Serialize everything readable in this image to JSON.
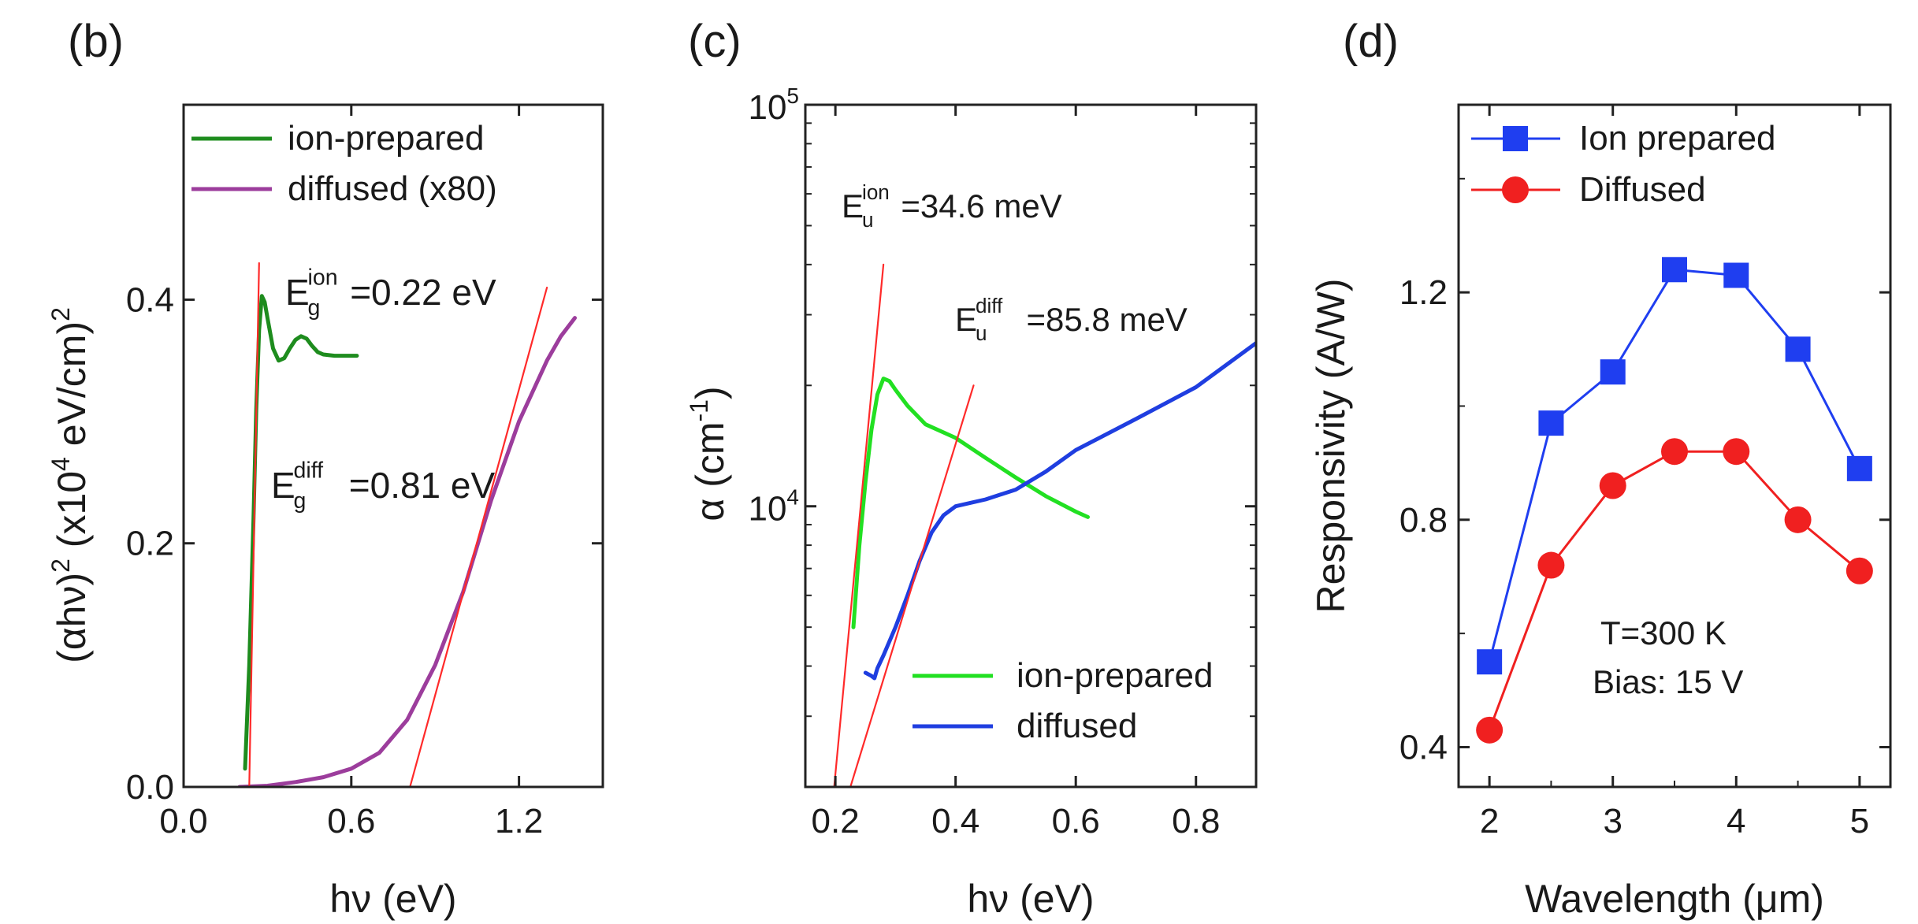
{
  "chart_data": [
    {
      "panel": "(b)",
      "type": "line",
      "xlabel": "hν (eV)",
      "ylabel_parts": [
        "(αhν)",
        "2",
        " (x10",
        "4",
        " eV/cm)",
        "2"
      ],
      "xlim": [
        0.0,
        1.5
      ],
      "ylim": [
        0.0,
        0.56
      ],
      "xticks": [
        0.0,
        0.6,
        1.2
      ],
      "xtick_labels": [
        "0.0",
        "0.6",
        "1.2"
      ],
      "yticks": [
        0.0,
        0.2,
        0.4
      ],
      "ytick_labels": [
        "0.0",
        "0.2",
        "0.4"
      ],
      "legend": [
        "ion-prepared",
        "diffused (x80)"
      ],
      "annotations": [
        {
          "parts": [
            "E",
            "g",
            "ion",
            "=0.22 eV"
          ],
          "color": "#1b8a1b"
        },
        {
          "parts": [
            "E",
            "g",
            "diff",
            "=0.81 eV"
          ],
          "color": "#9b2d9b"
        }
      ],
      "series": [
        {
          "name": "ion-prepared",
          "color": "#1e8c1e",
          "x": [
            0.22,
            0.235,
            0.25,
            0.26,
            0.27,
            0.28,
            0.29,
            0.3,
            0.32,
            0.34,
            0.36,
            0.38,
            0.4,
            0.42,
            0.44,
            0.46,
            0.48,
            0.5,
            0.54,
            0.58,
            0.62
          ],
          "y": [
            0.015,
            0.1,
            0.22,
            0.31,
            0.375,
            0.403,
            0.398,
            0.385,
            0.36,
            0.35,
            0.352,
            0.36,
            0.367,
            0.37,
            0.368,
            0.362,
            0.357,
            0.355,
            0.354,
            0.354,
            0.354
          ]
        },
        {
          "name": "diffused (x80)",
          "color": "#9c3d9c",
          "x": [
            0.2,
            0.3,
            0.4,
            0.5,
            0.6,
            0.7,
            0.8,
            0.9,
            1.0,
            1.1,
            1.2,
            1.3,
            1.35,
            1.4
          ],
          "y": [
            0.0,
            0.001,
            0.004,
            0.008,
            0.015,
            0.028,
            0.055,
            0.1,
            0.16,
            0.235,
            0.3,
            0.35,
            0.37,
            0.385
          ]
        }
      ],
      "fit_lines": [
        {
          "x": [
            0.235,
            0.27
          ],
          "y": [
            0.0,
            0.43
          ]
        },
        {
          "x": [
            0.81,
            1.3
          ],
          "y": [
            0.0,
            0.41
          ]
        }
      ]
    },
    {
      "panel": "(c)",
      "type": "line",
      "xscale": "linear",
      "yscale": "log",
      "xlabel": "hν (eV)",
      "ylabel_parts": [
        "α (cm",
        "-1",
        ")"
      ],
      "xlim": [
        0.15,
        0.9
      ],
      "ylim": [
        2000,
        100000
      ],
      "xticks": [
        0.2,
        0.4,
        0.6,
        0.8
      ],
      "xtick_labels": [
        "0.2",
        "0.4",
        "0.6",
        "0.8"
      ],
      "yticks": [
        10000,
        100000
      ],
      "ytick_labels": [
        [
          "10",
          "4"
        ],
        [
          "10",
          "5"
        ]
      ],
      "legend": [
        "ion-prepared",
        "diffused"
      ],
      "annotations": [
        {
          "parts": [
            "E",
            "u",
            "ion",
            "=34.6 meV"
          ],
          "color": "#1a1a1a"
        },
        {
          "parts": [
            "E",
            "u",
            "diff",
            "=85.8 meV"
          ],
          "color": "#1a1a1a"
        }
      ],
      "series": [
        {
          "name": "ion-prepared",
          "color": "#22e022",
          "x": [
            0.23,
            0.24,
            0.25,
            0.26,
            0.27,
            0.28,
            0.29,
            0.3,
            0.32,
            0.35,
            0.4,
            0.45,
            0.5,
            0.55,
            0.6,
            0.62
          ],
          "y": [
            5000,
            8000,
            11500,
            15500,
            19000,
            20800,
            20500,
            19500,
            17800,
            16000,
            14800,
            13200,
            11800,
            10600,
            9700,
            9400
          ]
        },
        {
          "name": "diffused",
          "color": "#1f3ee0",
          "x": [
            0.25,
            0.26,
            0.265,
            0.27,
            0.28,
            0.3,
            0.32,
            0.34,
            0.36,
            0.38,
            0.4,
            0.45,
            0.5,
            0.55,
            0.6,
            0.7,
            0.8,
            0.9
          ],
          "y": [
            3850,
            3780,
            3730,
            3950,
            4250,
            5000,
            6000,
            7300,
            8600,
            9500,
            10000,
            10400,
            11000,
            12200,
            13800,
            16500,
            19800,
            25500
          ]
        }
      ],
      "fit_lines": [
        {
          "x": [
            0.198,
            0.28
          ],
          "y": [
            2000,
            40000
          ]
        },
        {
          "x": [
            0.225,
            0.43
          ],
          "y": [
            2000,
            20000
          ]
        }
      ]
    },
    {
      "panel": "(d)",
      "type": "line",
      "xlabel": "Wavelength (μm)",
      "ylabel": "Responsivity (A/W)",
      "xlim": [
        1.75,
        5.25
      ],
      "ylim": [
        0.33,
        1.53
      ],
      "xticks": [
        2,
        3,
        4,
        5
      ],
      "xtick_labels": [
        "2",
        "3",
        "4",
        "5"
      ],
      "yticks": [
        0.4,
        0.8,
        1.2
      ],
      "ytick_labels": [
        "0.4",
        "0.8",
        "1.2"
      ],
      "legend": [
        "Ion prepared",
        "Diffused"
      ],
      "annotations": [
        {
          "text": "T=300 K"
        },
        {
          "text": "Bias: 15 V"
        }
      ],
      "series": [
        {
          "name": "Ion prepared",
          "color": "#1f3ef0",
          "marker": "square",
          "x": [
            2,
            2.5,
            3,
            3.5,
            4,
            4.5,
            5
          ],
          "y": [
            0.55,
            0.97,
            1.06,
            1.24,
            1.23,
            1.1,
            0.89
          ]
        },
        {
          "name": "Diffused",
          "color": "#f02020",
          "marker": "circle",
          "x": [
            2,
            2.5,
            3,
            3.5,
            4,
            4.5,
            5
          ],
          "y": [
            0.43,
            0.72,
            0.86,
            0.92,
            0.92,
            0.8,
            0.71
          ]
        }
      ]
    }
  ]
}
